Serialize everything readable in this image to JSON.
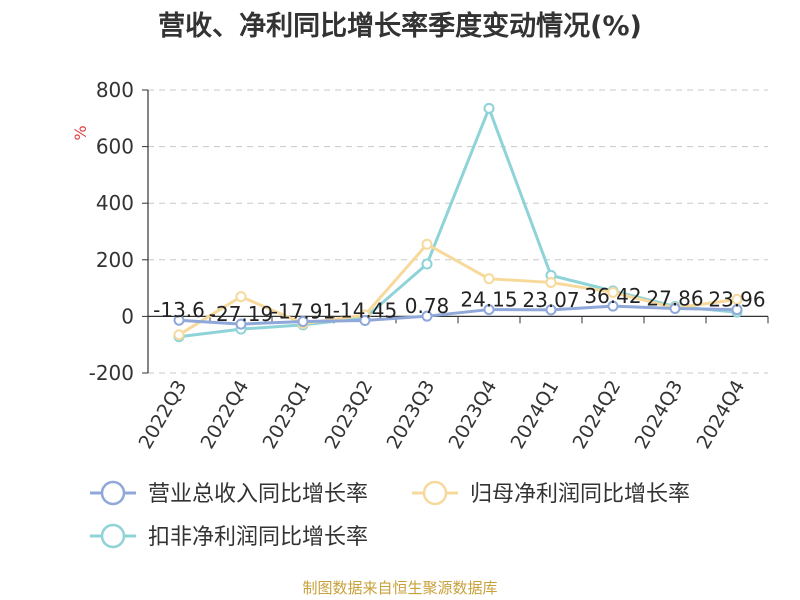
{
  "chart_data": {
    "type": "line",
    "title": "营收、净利同比增长率季度变动情况(%)",
    "ylabel": "%",
    "ylim": [
      -200,
      800
    ],
    "yticks": [
      -200,
      0,
      200,
      400,
      600,
      800
    ],
    "grid": true,
    "legend_position": "bottom",
    "categories": [
      "2022Q3",
      "2022Q4",
      "2023Q1",
      "2023Q2",
      "2023Q3",
      "2023Q4",
      "2024Q1",
      "2024Q2",
      "2024Q3",
      "2024Q4"
    ],
    "series": [
      {
        "name": "营业总收入同比增长率",
        "color": "#8fa8d9",
        "values": [
          -13.6,
          -27.19,
          -17.91,
          -14.45,
          0.78,
          24.15,
          23.07,
          36.42,
          27.86,
          23.96
        ],
        "labels": [
          "-13.6",
          "-27.19",
          "-17.91",
          "-14.45",
          "0.78",
          "24.15",
          "23.07",
          "36.42",
          "27.86",
          "23.96"
        ]
      },
      {
        "name": "归母净利润同比增长率",
        "color": "#f7d99c",
        "values": [
          -65,
          70,
          -25,
          5,
          255,
          133,
          120,
          85,
          30,
          60
        ]
      },
      {
        "name": "扣非净利润同比增长率",
        "color": "#8ed3d8",
        "values": [
          -72,
          -45,
          -30,
          -5,
          185,
          735,
          145,
          90,
          35,
          15
        ]
      }
    ]
  },
  "source_note": "制图数据来自恒生聚源数据库"
}
